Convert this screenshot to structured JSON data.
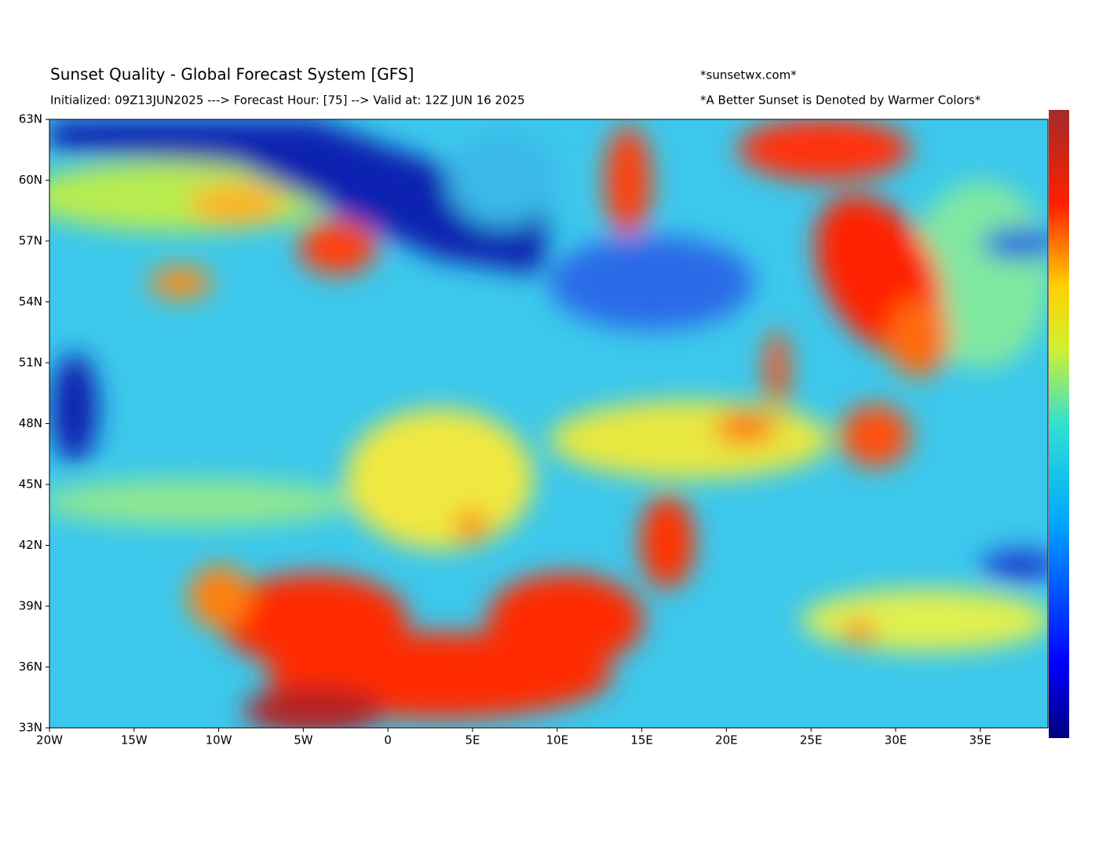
{
  "header": {
    "title": "Sunset Quality - Global Forecast System [GFS]",
    "subtitle": "Initialized: 09Z13JUN2025 ---> Forecast Hour: [75] --> Valid at: 12Z  JUN 16 2025",
    "site": "*sunsetwx.com*",
    "note": "*A Better Sunset is Denoted by Warmer Colors*"
  },
  "axes": {
    "xlim": [
      -20,
      39
    ],
    "ylim": [
      33,
      63
    ],
    "xticks": [
      {
        "value": -20,
        "label": "20W"
      },
      {
        "value": -15,
        "label": "15W"
      },
      {
        "value": -10,
        "label": "10W"
      },
      {
        "value": -5,
        "label": "5W"
      },
      0,
      {
        "value": 5,
        "label": "5E"
      },
      {
        "value": 10,
        "label": "10E"
      },
      {
        "value": 15,
        "label": "15E"
      },
      {
        "value": 20,
        "label": "20E"
      },
      {
        "value": 25,
        "label": "25E"
      },
      {
        "value": 30,
        "label": "30E"
      },
      {
        "value": 35,
        "label": "35E"
      }
    ],
    "yticks": [
      {
        "value": 33,
        "label": "33N"
      },
      {
        "value": 36,
        "label": "36N"
      },
      {
        "value": 39,
        "label": "39N"
      },
      {
        "value": 42,
        "label": "42N"
      },
      {
        "value": 45,
        "label": "45N"
      },
      {
        "value": 48,
        "label": "48N"
      },
      {
        "value": 51,
        "label": "51N"
      },
      {
        "value": 54,
        "label": "54N"
      },
      {
        "value": 57,
        "label": "57N"
      },
      {
        "value": 60,
        "label": "60N"
      },
      {
        "value": 63,
        "label": "63N"
      }
    ]
  }
}
